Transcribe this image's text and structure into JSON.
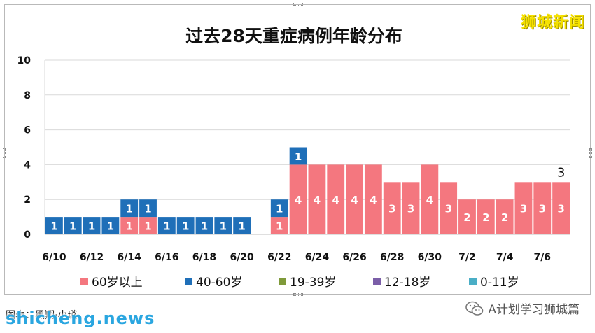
{
  "watermark": "狮城新闻",
  "credit": "图表：黑翔·小璐",
  "site_logo": "shicheng.news",
  "wechat_account": "A计划学习狮城篇",
  "chart_data": {
    "type": "bar",
    "stacked": true,
    "title": "过去28天重症病例年龄分布",
    "xlabel": "",
    "ylabel": "",
    "ylim": [
      0,
      10
    ],
    "yticks": [
      "0",
      "2",
      "4",
      "6",
      "8",
      "10"
    ],
    "grid": true,
    "legend_position": "bottom",
    "categories": [
      "6/10",
      "6/11",
      "6/12",
      "6/13",
      "6/14",
      "6/15",
      "6/16",
      "6/17",
      "6/18",
      "6/19",
      "6/20",
      "6/21",
      "6/22",
      "6/23",
      "6/24",
      "6/25",
      "6/26",
      "6/27",
      "6/28",
      "6/29",
      "6/30",
      "7/1",
      "7/2",
      "7/3",
      "7/4",
      "7/5",
      "7/6",
      "7/7"
    ],
    "tick_labels": [
      "6/10",
      "",
      "6/12",
      "",
      "6/14",
      "",
      "6/16",
      "",
      "6/18",
      "",
      "6/20",
      "",
      "6/22",
      "",
      "6/24",
      "",
      "6/26",
      "",
      "6/28",
      "",
      "6/30",
      "",
      "7/2",
      "",
      "7/4",
      "",
      "7/6",
      ""
    ],
    "series": [
      {
        "name": "60岁以上",
        "color": "#f4777f",
        "values": [
          0,
          0,
          0,
          0,
          1,
          1,
          0,
          0,
          0,
          0,
          0,
          0,
          1,
          4,
          4,
          4,
          4,
          4,
          3,
          3,
          4,
          3,
          2,
          2,
          2,
          3,
          3,
          3
        ]
      },
      {
        "name": "40-60岁",
        "color": "#1f6fb8",
        "values": [
          1,
          1,
          1,
          1,
          1,
          1,
          1,
          1,
          1,
          1,
          1,
          0,
          1,
          1,
          0,
          0,
          0,
          0,
          0,
          0,
          0,
          0,
          0,
          0,
          0,
          0,
          0,
          0
        ]
      },
      {
        "name": "19-39岁",
        "color": "#7f9a3a",
        "values": [
          0,
          0,
          0,
          0,
          0,
          0,
          0,
          0,
          0,
          0,
          0,
          0,
          0,
          0,
          0,
          0,
          0,
          0,
          0,
          0,
          0,
          0,
          0,
          0,
          0,
          0,
          0,
          0
        ]
      },
      {
        "name": "12-18岁",
        "color": "#7b5ea8",
        "values": [
          0,
          0,
          0,
          0,
          0,
          0,
          0,
          0,
          0,
          0,
          0,
          0,
          0,
          0,
          0,
          0,
          0,
          0,
          0,
          0,
          0,
          0,
          0,
          0,
          0,
          0,
          0,
          0
        ]
      },
      {
        "name": "0-11岁",
        "color": "#4aaec6",
        "values": [
          0,
          0,
          0,
          0,
          0,
          0,
          0,
          0,
          0,
          0,
          0,
          0,
          0,
          0,
          0,
          0,
          0,
          0,
          0,
          0,
          0,
          0,
          0,
          0,
          0,
          0,
          0,
          0
        ]
      }
    ],
    "annotations": [
      {
        "category": "7/7",
        "text": "3"
      }
    ]
  }
}
